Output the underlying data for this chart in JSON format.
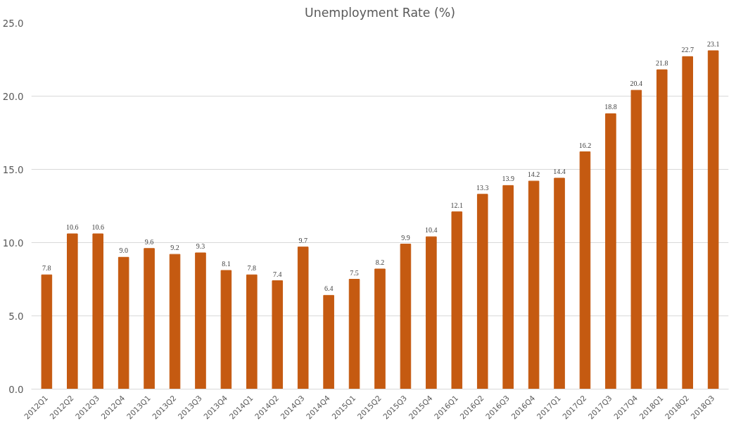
{
  "chart_data": {
    "type": "bar",
    "title": "Unemployment Rate (%)",
    "categories": [
      "2012Q1",
      "2012Q2",
      "2012Q3",
      "2012Q4",
      "2013Q1",
      "2013Q2",
      "2013Q3",
      "2013Q4",
      "2014Q1",
      "2014Q2",
      "2014Q3",
      "2014Q4",
      "2015Q1",
      "2015Q2",
      "2015Q3",
      "2015Q4",
      "2016Q1",
      "2016Q2",
      "2016Q3",
      "2016Q4",
      "2017Q1",
      "2017Q2",
      "2017Q3",
      "2017Q4",
      "2018Q1",
      "2018Q2",
      "2018Q3"
    ],
    "values": [
      7.8,
      10.6,
      10.6,
      9.0,
      9.6,
      9.2,
      9.3,
      8.1,
      7.8,
      7.4,
      9.7,
      6.4,
      7.5,
      8.2,
      9.9,
      10.4,
      12.1,
      13.3,
      13.9,
      14.2,
      14.4,
      16.2,
      18.8,
      20.4,
      21.8,
      22.7,
      23.1
    ],
    "value_labels": [
      "7.8",
      "10.6",
      "10.6",
      "9.0",
      "9.6",
      "9.2",
      "9.3",
      "8.1",
      "7.8",
      "7.4",
      "9.7",
      "6.4",
      "7.5",
      "8.2",
      "9.9",
      "10.4",
      "12.1",
      "13.3",
      "13.9",
      "14.2",
      "14.4",
      "16.2",
      "18.8",
      "20.4",
      "21.8",
      "22.7",
      "23.1"
    ],
    "color": "#c55a11",
    "ylim": [
      0,
      25
    ],
    "yticks": [
      {
        "value": 0,
        "label": "0.0"
      },
      {
        "value": 5,
        "label": "5.0"
      },
      {
        "value": 10,
        "label": "10.0"
      },
      {
        "value": 15,
        "label": "15.0"
      },
      {
        "value": 20,
        "label": "20.0"
      },
      {
        "value": 25,
        "label": "25.0"
      }
    ],
    "grid": "y"
  }
}
